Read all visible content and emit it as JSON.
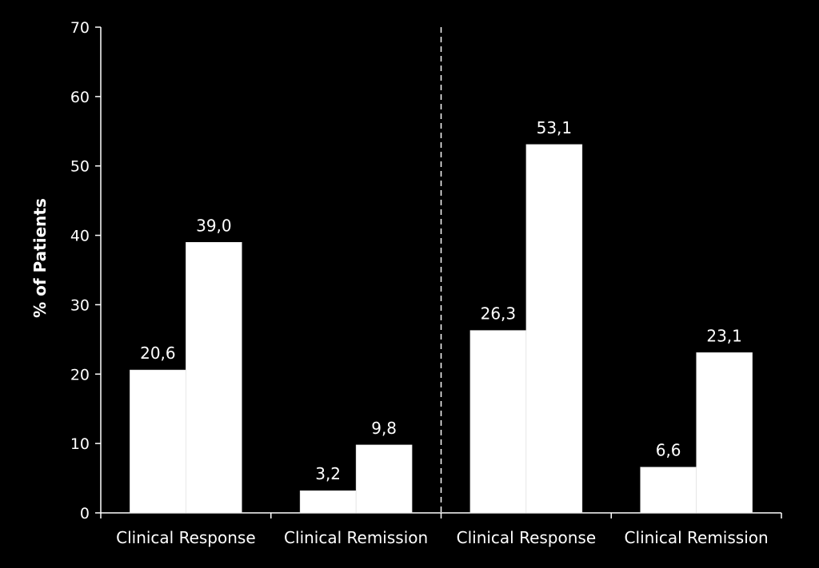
{
  "chart_data": {
    "type": "bar",
    "categories": [
      "Clinical Response",
      "Clinical Remission",
      "Clinical Response",
      "Clinical Remission"
    ],
    "series": [
      {
        "values": [
          20.6,
          3.2,
          26.3,
          6.6
        ],
        "labels": [
          "20,6",
          "3,2",
          "26,3",
          "6,6"
        ],
        "color": "#ffffff"
      },
      {
        "values": [
          39.0,
          9.8,
          53.1,
          23.1
        ],
        "labels": [
          "39,0",
          "9,8",
          "53,1",
          "23,1"
        ],
        "color": "#ffffff"
      }
    ],
    "ylabel": "% of Patients",
    "ylim": [
      0,
      70
    ],
    "yticks": [
      0,
      10,
      20,
      30,
      40,
      50,
      60,
      70
    ],
    "grid": false,
    "divider_after_category": 2,
    "background": "#000000",
    "axis_color": "#ffffff"
  }
}
